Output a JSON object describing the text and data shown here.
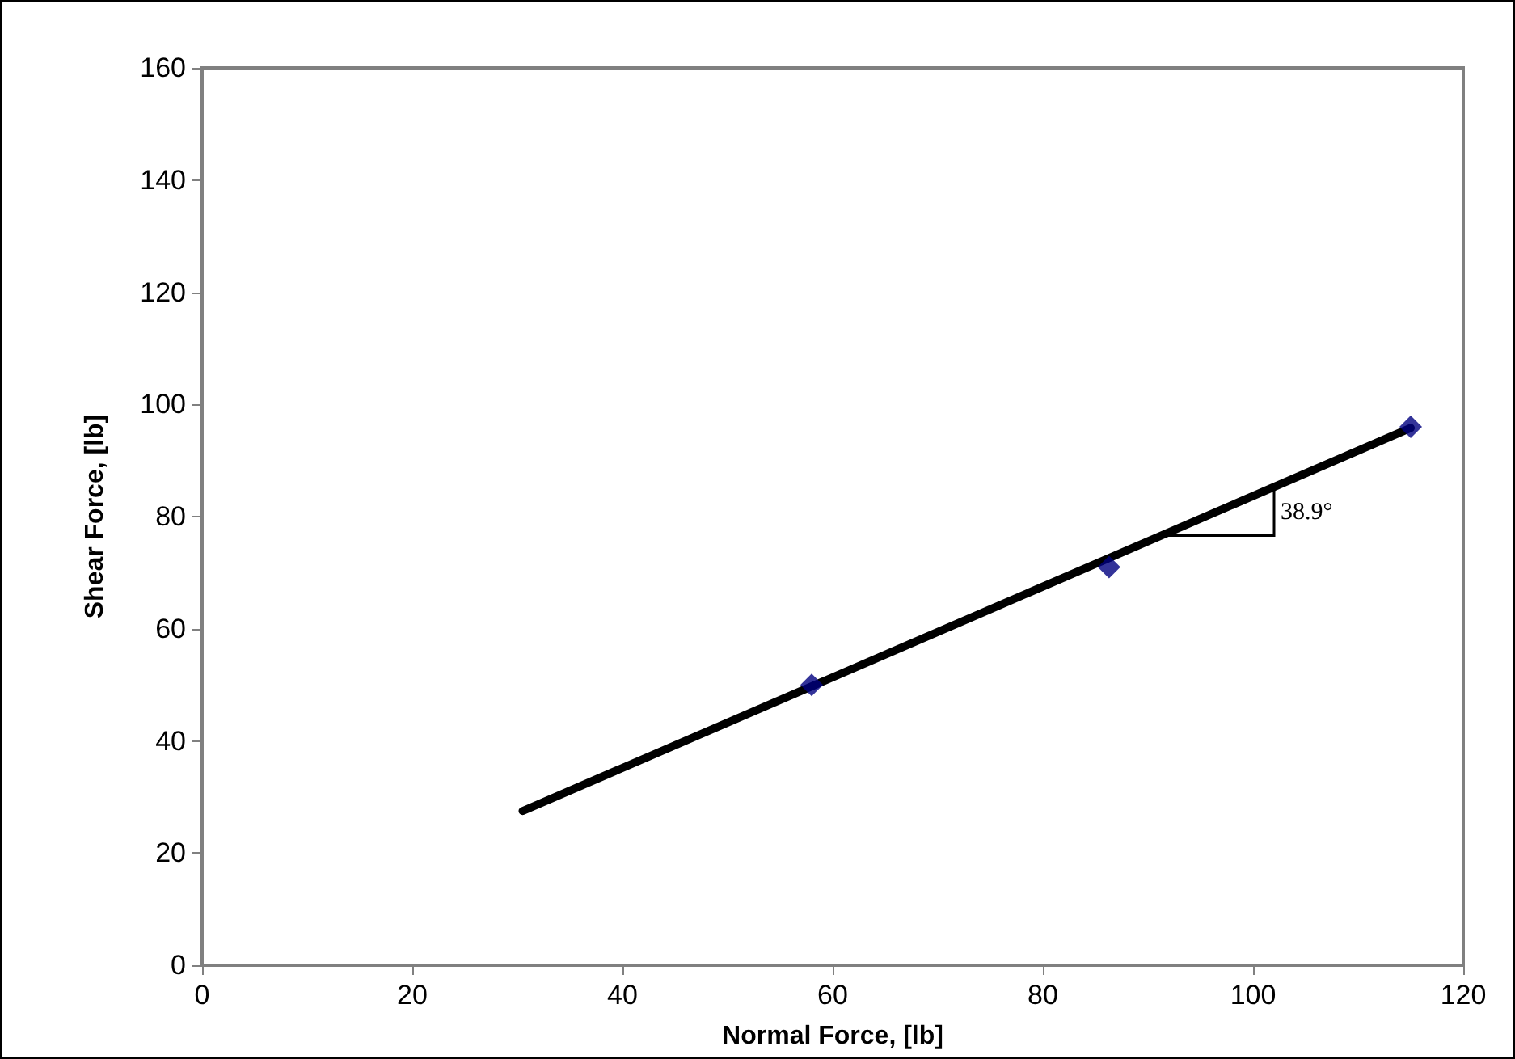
{
  "chart_data": {
    "type": "scatter",
    "xlabel": "Normal Force, [lb]",
    "ylabel": "Shear Force, [lb]",
    "xlim": [
      0,
      120
    ],
    "xticks": [
      0,
      20,
      40,
      60,
      80,
      100,
      120
    ],
    "ylim": [
      0,
      160
    ],
    "yticks": [
      0,
      20,
      40,
      60,
      80,
      100,
      120,
      140,
      160
    ],
    "grid": false,
    "marker": "diamond",
    "series": [
      {
        "type": "line",
        "color": "#000000",
        "x": [
          30.5,
          115
        ],
        "values": [
          27.5,
          95.8
        ],
        "marker": "none"
      },
      {
        "color": "#000080",
        "x": [
          58,
          86.3,
          115
        ],
        "values": [
          50,
          71,
          96
        ]
      }
    ],
    "annotations": [
      {
        "text": "38.9°",
        "x": 102,
        "y": 85.3
      }
    ]
  }
}
